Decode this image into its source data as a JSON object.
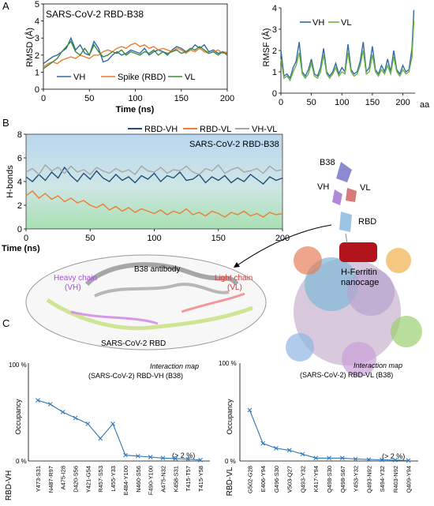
{
  "panel_labels": {
    "a": "A",
    "b": "B",
    "c": "C"
  },
  "chart_data": [
    {
      "type": "line",
      "id": "rmsd",
      "title": "SARS-CoV-2 RBD-B38",
      "xlabel": "Time (ns)",
      "ylabel": "RMSD (Å)",
      "xlim": [
        0,
        200
      ],
      "ylim": [
        0,
        5
      ],
      "xticks": [
        0,
        50,
        100,
        150,
        200
      ],
      "yticks": [
        0,
        1,
        2,
        3,
        4,
        5
      ],
      "grid": false,
      "legend": "bottom",
      "series": [
        {
          "name": "VH",
          "color": "#2e6aa6",
          "x": [
            0,
            5,
            10,
            15,
            20,
            25,
            30,
            35,
            40,
            45,
            50,
            55,
            60,
            65,
            70,
            75,
            80,
            85,
            90,
            95,
            100,
            105,
            110,
            115,
            120,
            125,
            130,
            135,
            140,
            145,
            150,
            155,
            160,
            165,
            170,
            175,
            180,
            185,
            190,
            195,
            200
          ],
          "y": [
            1.5,
            1.7,
            1.9,
            2.0,
            2.2,
            2.4,
            3.0,
            2.3,
            2.6,
            2.1,
            2.0,
            2.8,
            2.4,
            1.6,
            1.7,
            2.0,
            2.2,
            2.0,
            2.1,
            2.3,
            2.2,
            2.1,
            2.4,
            2.0,
            2.2,
            2.3,
            2.2,
            2.0,
            2.3,
            2.5,
            2.4,
            2.2,
            2.3,
            2.6,
            2.4,
            2.6,
            2.2,
            2.3,
            2.1,
            2.2,
            2.1
          ]
        },
        {
          "name": "Spike (RBD)",
          "color": "#ed7d31",
          "x": [
            0,
            5,
            10,
            15,
            20,
            25,
            30,
            35,
            40,
            45,
            50,
            55,
            60,
            65,
            70,
            75,
            80,
            85,
            90,
            95,
            100,
            105,
            110,
            115,
            120,
            125,
            130,
            135,
            140,
            145,
            150,
            155,
            160,
            165,
            170,
            175,
            180,
            185,
            190,
            195,
            200
          ],
          "y": [
            1.3,
            1.5,
            1.6,
            1.5,
            1.7,
            1.8,
            1.9,
            1.8,
            2.0,
            1.9,
            1.8,
            2.0,
            2.0,
            2.2,
            2.3,
            2.2,
            2.4,
            2.5,
            2.4,
            2.6,
            2.7,
            2.5,
            2.6,
            2.4,
            2.5,
            2.3,
            2.4,
            2.3,
            2.2,
            2.4,
            2.3,
            2.1,
            2.3,
            2.2,
            2.4,
            2.2,
            2.1,
            2.2,
            2.3,
            2.1,
            2.2
          ]
        },
        {
          "name": "VL",
          "color": "#3b8a3b",
          "x": [
            0,
            5,
            10,
            15,
            20,
            25,
            30,
            35,
            40,
            45,
            50,
            55,
            60,
            65,
            70,
            75,
            80,
            85,
            90,
            95,
            100,
            105,
            110,
            115,
            120,
            125,
            130,
            135,
            140,
            145,
            150,
            155,
            160,
            165,
            170,
            175,
            180,
            185,
            190,
            195,
            200
          ],
          "y": [
            1.2,
            1.4,
            1.6,
            1.8,
            2.2,
            2.5,
            2.8,
            2.2,
            2.0,
            2.4,
            2.0,
            2.6,
            2.2,
            1.9,
            2.0,
            2.2,
            2.1,
            2.3,
            2.0,
            2.2,
            2.1,
            2.0,
            2.2,
            2.1,
            2.3,
            2.0,
            2.2,
            2.1,
            2.2,
            2.3,
            2.1,
            2.2,
            2.4,
            2.3,
            2.5,
            2.3,
            2.1,
            2.2,
            2.0,
            2.2,
            2.0
          ]
        }
      ]
    },
    {
      "type": "line",
      "id": "rmsf",
      "xlabel": "aa",
      "ylabel": "RMSF (Å)",
      "xlim": [
        0,
        220
      ],
      "ylim": [
        0,
        4
      ],
      "xticks": [
        0,
        50,
        100,
        150,
        200
      ],
      "yticks": [
        0,
        1,
        2,
        3,
        4
      ],
      "grid": false,
      "legend": "top",
      "series": [
        {
          "name": "VH",
          "color": "#2e6aa6",
          "x": [
            0,
            5,
            10,
            15,
            20,
            25,
            30,
            35,
            40,
            45,
            50,
            55,
            60,
            65,
            70,
            75,
            80,
            85,
            90,
            95,
            100,
            105,
            110,
            115,
            120,
            125,
            130,
            135,
            140,
            145,
            150,
            155,
            160,
            165,
            170,
            175,
            180,
            185,
            190,
            195,
            200,
            205,
            210,
            215,
            218
          ],
          "y": [
            2.0,
            0.8,
            0.9,
            0.7,
            1.2,
            1.5,
            2.4,
            1.0,
            0.8,
            1.1,
            1.6,
            0.9,
            0.8,
            1.2,
            2.1,
            1.0,
            0.8,
            1.0,
            1.4,
            0.9,
            1.2,
            1.0,
            2.3,
            1.1,
            0.9,
            1.0,
            1.5,
            2.4,
            1.0,
            1.2,
            2.2,
            1.1,
            0.9,
            1.3,
            1.0,
            1.6,
            1.0,
            2.0,
            1.1,
            0.9,
            1.3,
            1.0,
            1.1,
            2.1,
            3.9
          ]
        },
        {
          "name": "VL",
          "color": "#6fb33e",
          "x": [
            0,
            5,
            10,
            15,
            20,
            25,
            30,
            35,
            40,
            45,
            50,
            55,
            60,
            65,
            70,
            75,
            80,
            85,
            90,
            95,
            100,
            105,
            110,
            115,
            120,
            125,
            130,
            135,
            140,
            145,
            150,
            155,
            160,
            165,
            170,
            175,
            180,
            185,
            190,
            195,
            200,
            205,
            210,
            215,
            218
          ],
          "y": [
            1.6,
            0.7,
            0.8,
            0.6,
            1.0,
            1.3,
            1.9,
            0.9,
            0.7,
            0.9,
            1.4,
            0.8,
            0.7,
            1.0,
            1.8,
            0.9,
            0.7,
            0.9,
            1.2,
            0.8,
            1.0,
            0.9,
            1.9,
            1.0,
            0.8,
            0.9,
            1.3,
            2.0,
            0.9,
            1.0,
            1.8,
            1.0,
            0.8,
            1.1,
            0.9,
            1.3,
            0.9,
            1.7,
            1.0,
            0.8,
            1.1,
            0.9,
            1.0,
            1.7,
            3.4
          ]
        }
      ]
    },
    {
      "type": "line",
      "id": "hbonds",
      "title": "SARS-CoV-2 RBD-B38",
      "xlabel": "Time (ns)",
      "ylabel": "H-bonds",
      "xlim": [
        0,
        200
      ],
      "ylim": [
        0,
        8
      ],
      "xticks": [
        0,
        50,
        100,
        150,
        200
      ],
      "yticks": [
        0,
        2,
        4,
        6,
        8
      ],
      "grid": false,
      "legend": "top",
      "series": [
        {
          "name": "RBD-VH",
          "color": "#1f4e79",
          "x": [
            0,
            5,
            10,
            15,
            20,
            25,
            30,
            35,
            40,
            45,
            50,
            55,
            60,
            65,
            70,
            75,
            80,
            85,
            90,
            95,
            100,
            105,
            110,
            115,
            120,
            125,
            130,
            135,
            140,
            145,
            150,
            155,
            160,
            165,
            170,
            175,
            180,
            185,
            190,
            195,
            200
          ],
          "y": [
            4.4,
            4.0,
            4.6,
            4.1,
            4.8,
            4.3,
            5.2,
            4.5,
            4.0,
            4.7,
            4.2,
            4.9,
            4.3,
            4.0,
            4.6,
            4.1,
            4.4,
            3.9,
            4.5,
            4.2,
            4.7,
            4.0,
            4.5,
            4.3,
            4.8,
            4.1,
            4.2,
            4.6,
            3.9,
            4.4,
            4.1,
            4.5,
            3.9,
            4.3,
            4.0,
            4.6,
            4.2,
            3.8,
            4.4,
            4.1,
            4.3
          ]
        },
        {
          "name": "RBD-VL",
          "color": "#ed7d31",
          "x": [
            0,
            5,
            10,
            15,
            20,
            25,
            30,
            35,
            40,
            45,
            50,
            55,
            60,
            65,
            70,
            75,
            80,
            85,
            90,
            95,
            100,
            105,
            110,
            115,
            120,
            125,
            130,
            135,
            140,
            145,
            150,
            155,
            160,
            165,
            170,
            175,
            180,
            185,
            190,
            195,
            200
          ],
          "y": [
            2.8,
            3.2,
            2.6,
            3.0,
            2.5,
            2.8,
            2.3,
            2.6,
            2.2,
            2.4,
            2.0,
            1.8,
            2.1,
            1.6,
            1.9,
            1.5,
            1.8,
            1.4,
            1.7,
            1.5,
            1.3,
            1.6,
            1.2,
            1.5,
            1.3,
            1.7,
            1.2,
            1.4,
            1.1,
            1.5,
            1.3,
            1.0,
            1.4,
            1.2,
            1.5,
            1.1,
            1.3,
            1.0,
            1.4,
            1.2,
            1.3
          ]
        },
        {
          "name": "VH-VL",
          "color": "#a6a6a6",
          "x": [
            0,
            5,
            10,
            15,
            20,
            25,
            30,
            35,
            40,
            45,
            50,
            55,
            60,
            65,
            70,
            75,
            80,
            85,
            90,
            95,
            100,
            105,
            110,
            115,
            120,
            125,
            130,
            135,
            140,
            145,
            150,
            155,
            160,
            165,
            170,
            175,
            180,
            185,
            190,
            195,
            200
          ],
          "y": [
            4.8,
            5.1,
            4.6,
            5.4,
            4.9,
            5.2,
            4.7,
            5.3,
            4.8,
            5.0,
            4.6,
            5.2,
            4.9,
            4.7,
            5.1,
            4.8,
            5.0,
            4.6,
            5.3,
            4.9,
            4.8,
            5.2,
            4.7,
            5.0,
            4.9,
            5.3,
            4.8,
            4.6,
            5.1,
            4.9,
            5.4,
            4.7,
            5.0,
            5.2,
            4.8,
            4.9,
            5.1,
            4.7,
            5.3,
            4.9,
            5.0
          ]
        }
      ]
    },
    {
      "type": "line",
      "id": "occ_vh",
      "title": "Interaction map",
      "subtitle": "(SARS-CoV-2) RBD-VH (B38)",
      "ylabel": "Occupancy",
      "side_label": "RBD-VH",
      "ylim": [
        0,
        100
      ],
      "ytick_labels": [
        "100 %",
        "0 %"
      ],
      "annotation": "(> 2 %)",
      "categories": [
        "Y473-S31",
        "N487-R97",
        "A475-I28",
        "D420-S56",
        "Y421-G54",
        "R457-S53",
        "L455-Y33",
        "E484-Y100",
        "N460-S56",
        "F490-Y100",
        "A475-N32",
        "K458-S31",
        "T415-T57",
        "T415-Y58"
      ],
      "series": [
        {
          "name": "RBD-VH",
          "color": "#2e75b6",
          "values": [
            62,
            58,
            50,
            44,
            38,
            23,
            38,
            6,
            5,
            4,
            3,
            2.5,
            2,
            1
          ]
        }
      ]
    },
    {
      "type": "line",
      "id": "occ_vl",
      "title": "Interaction map",
      "subtitle": "(SARS-CoV-2) RBD-VL (B38)",
      "ylabel": "Occupancy",
      "side_label": "RBD-VL",
      "ylim": [
        0,
        100
      ],
      "ytick_labels": [
        "100 %",
        "0 %"
      ],
      "annotation": "(> 2 %)",
      "categories": [
        "G502-G28",
        "E406-Y94",
        "G496-S30",
        "V503-Q27",
        "Q493-Y32",
        "K417-Y94",
        "Q498-S30",
        "Q498-S67",
        "Y453-Y32",
        "Q493-N92",
        "S494-Y32",
        "R403-N92",
        "Q409-Y94"
      ],
      "series": [
        {
          "name": "RBD-VL",
          "color": "#2e75b6",
          "values": [
            52,
            18,
            13,
            11,
            7,
            3,
            3,
            3,
            2,
            1.5,
            1.2,
            1,
            0.5
          ]
        }
      ]
    }
  ],
  "structure": {
    "labels": {
      "b38": "B38",
      "vh": "VH",
      "vl": "VL",
      "rbd": "RBD",
      "ferritin": "H-Ferritin\nnanocage"
    },
    "inset": {
      "heavy": "Heavy chain\n(VH)",
      "antibody": "B38 antibody",
      "light": "Light chain\n(VL)",
      "rbd": "SARS-CoV-2 RBD"
    },
    "colors": {
      "heavy": "#a64dd6",
      "light": "#d93a3a"
    }
  }
}
